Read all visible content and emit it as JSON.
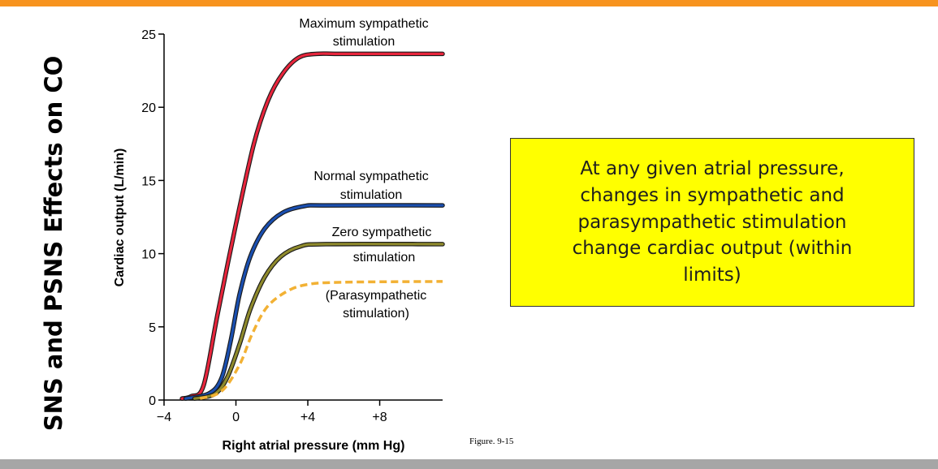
{
  "slide": {
    "side_title": "SNS and PSNS Effects on CO",
    "figure_caption": "Figure. 9-15",
    "callout_text": "At any given atrial pressure, changes in sympathetic and parasympathetic stimulation change cardiac output (within limits)",
    "colors": {
      "top_bar": "#f7931e",
      "bottom_bar": "#a6a6a6",
      "callout_bg": "#ffff00"
    }
  },
  "chart_data": {
    "type": "line",
    "title": "",
    "xlabel": "Right atrial pressure (mm Hg)",
    "ylabel": "Cardiac output (L/min)",
    "xlim": [
      -4,
      11.5
    ],
    "ylim": [
      0,
      25
    ],
    "x_ticks": [
      {
        "value": -4,
        "label": "−4"
      },
      {
        "value": 0,
        "label": "0"
      },
      {
        "value": 4,
        "label": "+4"
      },
      {
        "value": 8,
        "label": "+8"
      }
    ],
    "y_ticks": [
      {
        "value": 0,
        "label": "0"
      },
      {
        "value": 5,
        "label": "5"
      },
      {
        "value": 10,
        "label": "10"
      },
      {
        "value": 15,
        "label": "15"
      },
      {
        "value": 20,
        "label": "20"
      },
      {
        "value": 25,
        "label": "25"
      }
    ],
    "grid": false,
    "series": [
      {
        "name": "Maximum sympathetic stimulation",
        "label_lines": [
          "Maximum sympathetic",
          "stimulation"
        ],
        "color": "#e8253c",
        "style": "solid",
        "points": [
          [
            -3,
            0.1
          ],
          [
            -2.5,
            0.25
          ],
          [
            -1.8,
            1.0
          ],
          [
            -1.0,
            6.0
          ],
          [
            0,
            12.0
          ],
          [
            1,
            17.5
          ],
          [
            1.8,
            20.5
          ],
          [
            2.6,
            22.3
          ],
          [
            3.5,
            23.4
          ],
          [
            4.5,
            23.65
          ],
          [
            6,
            23.65
          ],
          [
            11.5,
            23.65
          ]
        ]
      },
      {
        "name": "Normal sympathetic stimulation",
        "label_lines": [
          "Normal sympathetic",
          "stimulation"
        ],
        "color": "#1a4fb0",
        "style": "solid",
        "points": [
          [
            -2.8,
            0.1
          ],
          [
            -1.5,
            0.45
          ],
          [
            -0.8,
            1.5
          ],
          [
            -0.3,
            4.0
          ],
          [
            0.2,
            7.2
          ],
          [
            0.8,
            9.8
          ],
          [
            1.6,
            11.7
          ],
          [
            2.6,
            12.8
          ],
          [
            3.8,
            13.25
          ],
          [
            5,
            13.3
          ],
          [
            11.5,
            13.3
          ]
        ]
      },
      {
        "name": "Zero sympathetic stimulation",
        "label_lines": [
          "Zero sympathetic",
          "stimulation"
        ],
        "color": "#8f8a2c",
        "style": "solid",
        "points": [
          [
            -2.3,
            0.1
          ],
          [
            -1.2,
            0.4
          ],
          [
            -0.5,
            1.5
          ],
          [
            0.2,
            3.8
          ],
          [
            0.8,
            6.2
          ],
          [
            1.6,
            8.4
          ],
          [
            2.5,
            9.8
          ],
          [
            3.6,
            10.5
          ],
          [
            5,
            10.65
          ],
          [
            11.5,
            10.65
          ]
        ]
      },
      {
        "name": "(Parasympathetic stimulation)",
        "label_lines": [
          "(Parasympathetic",
          "stimulation)"
        ],
        "color": "#f2b134",
        "style": "dashed",
        "points": [
          [
            -2.0,
            0.1
          ],
          [
            -0.8,
            0.6
          ],
          [
            0.2,
            2.4
          ],
          [
            0.9,
            4.5
          ],
          [
            1.7,
            6.3
          ],
          [
            2.8,
            7.4
          ],
          [
            4,
            7.9
          ],
          [
            6,
            8.05
          ],
          [
            11.5,
            8.1
          ]
        ]
      }
    ]
  }
}
